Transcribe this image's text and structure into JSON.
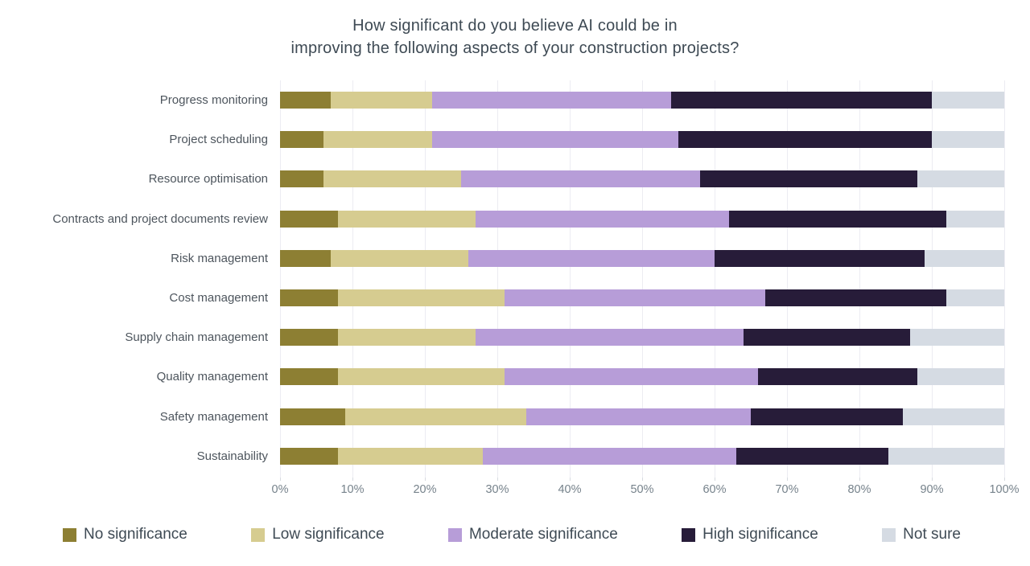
{
  "title": {
    "line1": "How significant do you believe AI could be in",
    "line2": "improving the following aspects of your construction projects?"
  },
  "chart_data": {
    "type": "bar",
    "orientation": "horizontal",
    "stacked": true,
    "unit": "percent",
    "title": "How significant do you believe AI could be in improving the following aspects of your construction projects?",
    "categories": [
      "Progress monitoring",
      "Project scheduling",
      "Resource optimisation",
      "Contracts and project documents review",
      "Risk management",
      "Cost management",
      "Supply chain management",
      "Quality management",
      "Safety management",
      "Sustainability"
    ],
    "series": [
      {
        "name": "No significance",
        "color": "#8d7f33",
        "values": [
          7,
          6,
          6,
          8,
          7,
          8,
          8,
          8,
          9,
          8
        ]
      },
      {
        "name": "Low significance",
        "color": "#d6cc90",
        "values": [
          14,
          15,
          19,
          19,
          19,
          23,
          19,
          23,
          25,
          20
        ]
      },
      {
        "name": "Moderate significance",
        "color": "#b79dd8",
        "values": [
          33,
          34,
          33,
          35,
          34,
          36,
          37,
          35,
          31,
          35
        ]
      },
      {
        "name": "High significance",
        "color": "#271c39",
        "values": [
          36,
          35,
          30,
          30,
          29,
          25,
          23,
          22,
          21,
          21
        ]
      },
      {
        "name": "Not sure",
        "color": "#d5dbe3",
        "values": [
          10,
          10,
          12,
          8,
          11,
          8,
          13,
          12,
          14,
          16
        ]
      }
    ],
    "x_axis": {
      "min": 0,
      "max": 100,
      "tick_labels": [
        "0%",
        "10%",
        "20%",
        "30%",
        "40%",
        "50%",
        "60%",
        "70%",
        "80%",
        "90%",
        "100%"
      ]
    },
    "grid": true,
    "legend_position": "bottom"
  }
}
